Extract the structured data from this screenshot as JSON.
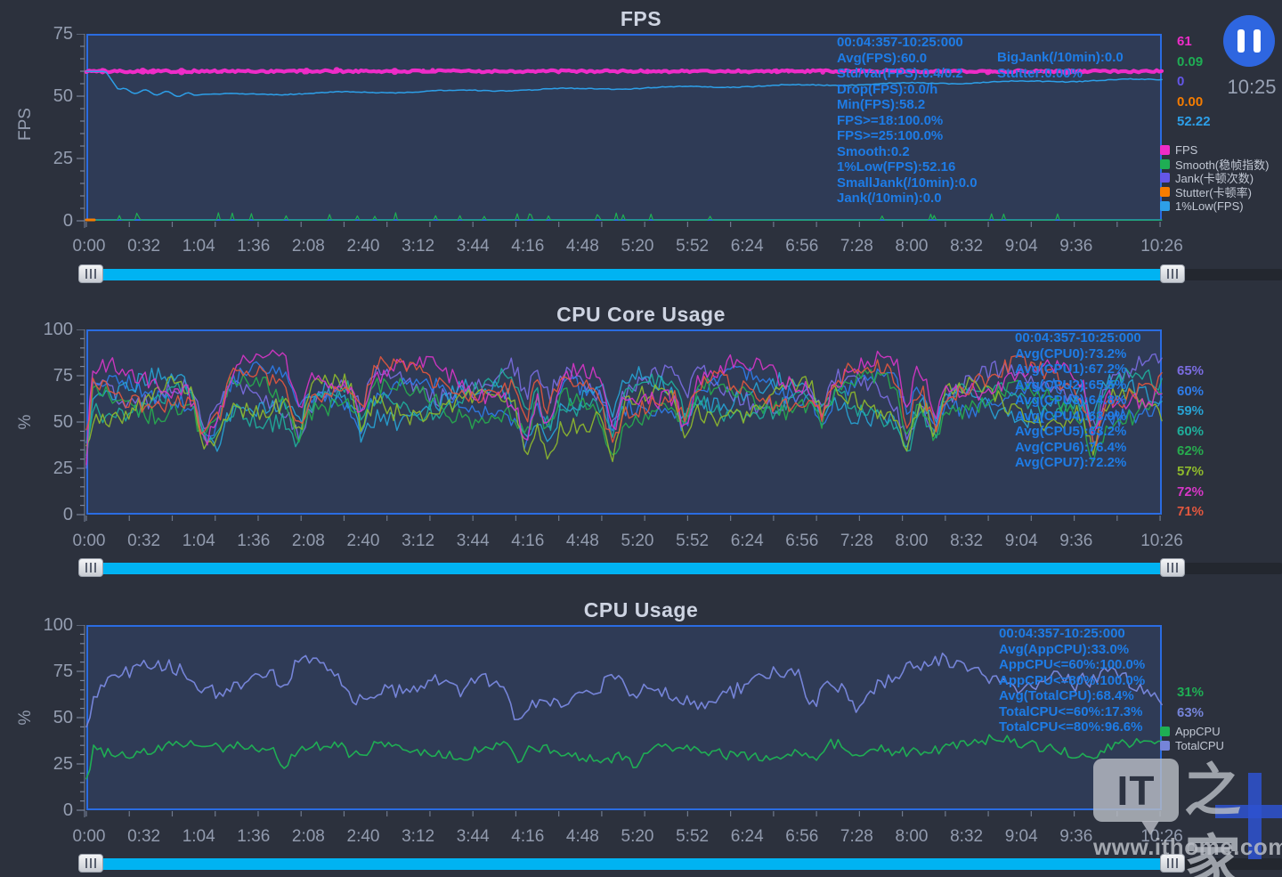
{
  "app": {
    "name": "performance-dashboard",
    "time_display": "10:25"
  },
  "controls": {
    "pause_button": "pause"
  },
  "charts": [
    {
      "id": "fps",
      "title": "FPS",
      "ylabel": "FPS",
      "y_ticks": [
        "75",
        "50",
        "25",
        "0"
      ],
      "x_ticks": [
        "0:00",
        "0:32",
        "1:04",
        "1:36",
        "2:08",
        "2:40",
        "3:12",
        "3:44",
        "4:16",
        "4:48",
        "5:20",
        "5:52",
        "6:24",
        "6:56",
        "7:28",
        "8:00",
        "8:32",
        "9:04",
        "9:36",
        "10:26"
      ],
      "overlay": [
        "00:04:357-10:25:000",
        "Avg(FPS):60.0",
        "Std/Var(FPS):0.4/0.2",
        "Drop(FPS):0.0/h",
        "Min(FPS):58.2",
        "FPS>=18:100.0%",
        "FPS>=25:100.0%",
        "Smooth:0.2",
        "1%Low(FPS):52.16",
        "SmallJank(/10min):0.0",
        "Jank(/10min):0.0"
      ],
      "overlay_right": [
        "BigJank(/10min):0.0",
        "Stutter:0.00%"
      ],
      "right_values": [
        {
          "text": "61",
          "color": "#ee2cc8"
        },
        {
          "text": "0.09",
          "color": "#1fae54"
        },
        {
          "text": "0",
          "color": "#6456e8"
        },
        {
          "text": "0.00",
          "color": "#f57c00"
        },
        {
          "text": "52.22",
          "color": "#2d9fe8"
        }
      ],
      "legend": [
        {
          "label": "FPS",
          "color": "#ee2cc8"
        },
        {
          "label": "Smooth(稳帧指数)",
          "color": "#1fae54"
        },
        {
          "label": "Jank(卡顿次数)",
          "color": "#6456e8"
        },
        {
          "label": "Stutter(卡顿率)",
          "color": "#f57c00"
        },
        {
          "label": "1%Low(FPS)",
          "color": "#2d9fe8"
        }
      ]
    },
    {
      "id": "cpu-core",
      "title": "CPU Core Usage",
      "ylabel": "%",
      "y_ticks": [
        "100",
        "75",
        "50",
        "25",
        "0"
      ],
      "x_ticks": [
        "0:00",
        "0:32",
        "1:04",
        "1:36",
        "2:08",
        "2:40",
        "3:12",
        "3:44",
        "4:16",
        "4:48",
        "5:20",
        "5:52",
        "6:24",
        "6:56",
        "7:28",
        "8:00",
        "8:32",
        "9:04",
        "9:36",
        "10:26"
      ],
      "overlay": [
        "00:04:357-10:25:000",
        "Avg(CPU0):73.2%",
        "Avg(CPU1):67.2%",
        "Avg(CPU2):65.5%",
        "Avg(CPU3):64.8%",
        "Avg(CPU4):63.9%",
        "Avg(CPU5):63.2%",
        "Avg(CPU6):76.4%",
        "Avg(CPU7):72.2%"
      ],
      "overlay_right": [],
      "right_values": [
        {
          "text": "65%",
          "color": "#7a6ce0"
        },
        {
          "text": "60%",
          "color": "#2e7ce8"
        },
        {
          "text": "59%",
          "color": "#27a3d4"
        },
        {
          "text": "60%",
          "color": "#1fae9b"
        },
        {
          "text": "62%",
          "color": "#27ab4e"
        },
        {
          "text": "57%",
          "color": "#8fba2c"
        },
        {
          "text": "72%",
          "color": "#d636c6"
        },
        {
          "text": "71%",
          "color": "#e2573e"
        }
      ],
      "legend": []
    },
    {
      "id": "cpu-usage",
      "title": "CPU Usage",
      "ylabel": "%",
      "y_ticks": [
        "100",
        "75",
        "50",
        "25",
        "0"
      ],
      "x_ticks": [
        "0:00",
        "0:32",
        "1:04",
        "1:36",
        "2:08",
        "2:40",
        "3:12",
        "3:44",
        "4:16",
        "4:48",
        "5:20",
        "5:52",
        "6:24",
        "6:56",
        "7:28",
        "8:00",
        "8:32",
        "9:04",
        "9:36",
        "10:26"
      ],
      "overlay": [
        "00:04:357-10:25:000",
        "Avg(AppCPU):33.0%",
        "AppCPU<=60%:100.0%",
        "AppCPU<=80%:100.0%",
        "Avg(TotalCPU):68.4%",
        "TotalCPU<=60%:17.3%",
        "TotalCPU<=80%:96.6%"
      ],
      "overlay_right": [],
      "right_values": [
        {
          "text": "31%",
          "color": "#1fae54"
        },
        {
          "text": "63%",
          "color": "#7584d8"
        }
      ],
      "legend": [
        {
          "label": "AppCPU",
          "color": "#1fae54"
        },
        {
          "label": "TotalCPU",
          "color": "#7584d8"
        }
      ]
    }
  ],
  "chart_data": [
    {
      "type": "line",
      "title": "FPS",
      "ylabel": "FPS",
      "ylim": [
        0,
        75
      ],
      "x_range": [
        "0:00",
        "10:26"
      ],
      "time_window": "00:04:357-10:25:000",
      "metrics": {
        "Avg(FPS)": 60.0,
        "Std/Var(FPS)": "0.4/0.2",
        "Drop(FPS)": "0.0/h",
        "Min(FPS)": 58.2,
        "FPS>=18": "100.0%",
        "FPS>=25": "100.0%",
        "Smooth": 0.2,
        "1%Low(FPS)": 52.16,
        "SmallJank(/10min)": 0.0,
        "Jank(/10min)": 0.0,
        "BigJank(/10min)": 0.0,
        "Stutter": "0.00%"
      },
      "series": [
        {
          "name": "FPS",
          "color": "#ee2cc8",
          "avg": 60.0,
          "min": 58.2,
          "current": 61,
          "shape": "constant near 60 for whole run",
          "synth": {
            "kind": "flat",
            "base": 60,
            "noise": 0.45,
            "width": 4.2,
            "seed": 101,
            "blobs": 26
          }
        },
        {
          "name": "1%Low(FPS)",
          "color": "#2d9fe8",
          "current": 52.22,
          "low_1pct": 52.16,
          "shape": "starts 60, dips to ~50 early, slowly recovers to ~57",
          "synth": {
            "kind": "lowfps",
            "width": 1.5,
            "seed": 102
          }
        },
        {
          "name": "Smooth(稳帧指数)",
          "color": "#1fae54",
          "current": 0.09,
          "avg": 0.2,
          "shape": "near 0 with sparse small spikes ~2-3",
          "synth": {
            "kind": "spikes",
            "count": 30,
            "width": 1.2,
            "seed": 103
          }
        },
        {
          "name": "Jank(卡顿次数)",
          "color": "#6456e8",
          "current": 0,
          "shape": "flat 0",
          "synth": {
            "kind": "zero",
            "stub": false
          }
        },
        {
          "name": "Stutter(卡顿率)",
          "color": "#f57c00",
          "current": 0.0,
          "shape": "flat 0",
          "synth": {
            "kind": "zero",
            "stub": true
          }
        }
      ]
    },
    {
      "type": "line",
      "title": "CPU Core Usage",
      "ylabel": "%",
      "ylim": [
        0,
        100
      ],
      "x_range": [
        "0:00",
        "10:26"
      ],
      "time_window": "00:04:357-10:25:000",
      "series": [
        {
          "name": "CPU0",
          "color": "#7a6ce0",
          "avg": 73.2,
          "current_pct": 65,
          "range": [
            45,
            95
          ],
          "synth": {
            "kind": "core",
            "base": 72,
            "seed": 201
          }
        },
        {
          "name": "CPU1",
          "color": "#2e7ce8",
          "avg": 67.2,
          "current_pct": 60,
          "range": [
            42,
            92
          ],
          "synth": {
            "kind": "core",
            "base": 67,
            "seed": 202
          }
        },
        {
          "name": "CPU2",
          "color": "#27a3d4",
          "avg": 65.5,
          "current_pct": 59,
          "range": [
            40,
            90
          ],
          "synth": {
            "kind": "core",
            "base": 65,
            "seed": 203
          }
        },
        {
          "name": "CPU3",
          "color": "#1fae9b",
          "avg": 64.8,
          "current_pct": 60,
          "range": [
            40,
            90
          ],
          "synth": {
            "kind": "core",
            "base": 64,
            "seed": 204
          }
        },
        {
          "name": "CPU4",
          "color": "#27ab4e",
          "avg": 63.9,
          "current_pct": 62,
          "range": [
            38,
            88
          ],
          "synth": {
            "kind": "core",
            "base": 63,
            "seed": 205
          }
        },
        {
          "name": "CPU5",
          "color": "#8fba2c",
          "avg": 63.2,
          "current_pct": 57,
          "range": [
            38,
            88
          ],
          "synth": {
            "kind": "core",
            "base": 62,
            "seed": 206
          }
        },
        {
          "name": "CPU6",
          "color": "#d636c6",
          "avg": 76.4,
          "current_pct": 72,
          "range": [
            48,
            96
          ],
          "synth": {
            "kind": "core",
            "base": 75,
            "seed": 207
          }
        },
        {
          "name": "CPU7",
          "color": "#e2573e",
          "avg": 72.2,
          "current_pct": 71,
          "range": [
            45,
            94
          ],
          "synth": {
            "kind": "core",
            "base": 71,
            "seed": 208
          }
        }
      ]
    },
    {
      "type": "line",
      "title": "CPU Usage",
      "ylabel": "%",
      "ylim": [
        0,
        100
      ],
      "x_range": [
        "0:00",
        "10:26"
      ],
      "time_window": "00:04:357-10:25:000",
      "metrics": {
        "Avg(AppCPU)": "33.0%",
        "AppCPU<=60%": "100.0%",
        "AppCPU<=80%": "100.0%",
        "Avg(TotalCPU)": "68.4%",
        "TotalCPU<=60%": "17.3%",
        "TotalCPU<=80%": "96.6%"
      },
      "series": [
        {
          "name": "AppCPU",
          "color": "#1fae54",
          "avg": 33.0,
          "current_pct": 31,
          "range": [
            17,
            44
          ],
          "synth": {
            "kind": "app",
            "base": 33,
            "seed": 301
          }
        },
        {
          "name": "TotalCPU",
          "color": "#7584d8",
          "avg": 68.4,
          "current_pct": 63,
          "range": [
            50,
            91
          ],
          "synth": {
            "kind": "total",
            "base": 68,
            "seed": 302
          }
        }
      ]
    }
  ],
  "watermark": {
    "badge": "IT",
    "cjk": "之家",
    "site": "www.ithome.com"
  }
}
